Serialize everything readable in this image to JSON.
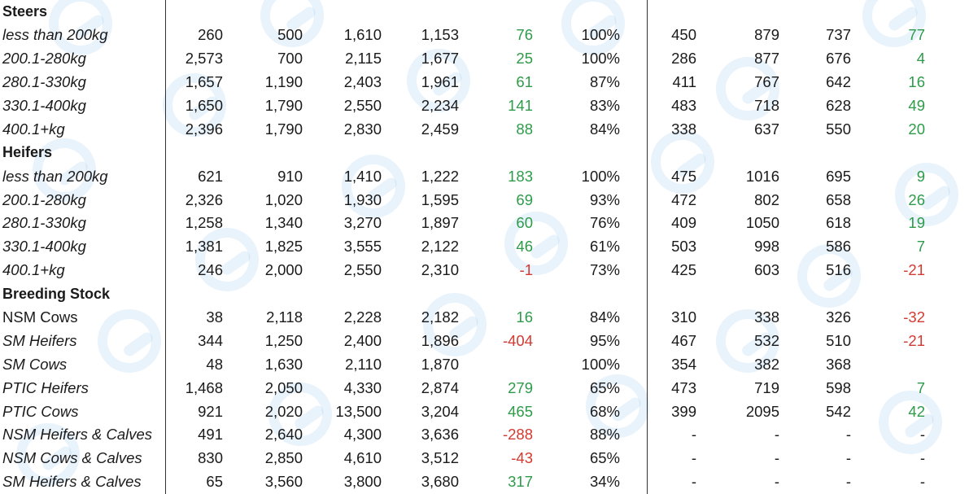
{
  "colors": {
    "positive": "#2e9b4a",
    "negative": "#d23a32",
    "watermark": "#78b4eb"
  },
  "sections": [
    {
      "title": "Steers",
      "rows": [
        {
          "label": "less than 200kg",
          "v": [
            "260",
            "500",
            "1,610",
            "1,153",
            "76",
            "100%",
            "450",
            "879",
            "737",
            "77"
          ]
        },
        {
          "label": "200.1-280kg",
          "v": [
            "2,573",
            "700",
            "2,115",
            "1,677",
            "25",
            "100%",
            "286",
            "877",
            "676",
            "4"
          ]
        },
        {
          "label": "280.1-330kg",
          "v": [
            "1,657",
            "1,190",
            "2,403",
            "1,961",
            "61",
            "87%",
            "411",
            "767",
            "642",
            "16"
          ]
        },
        {
          "label": "330.1-400kg",
          "v": [
            "1,650",
            "1,790",
            "2,550",
            "2,234",
            "141",
            "83%",
            "483",
            "718",
            "628",
            "49"
          ]
        },
        {
          "label": "400.1+kg",
          "v": [
            "2,396",
            "1,790",
            "2,830",
            "2,459",
            "88",
            "84%",
            "338",
            "637",
            "550",
            "20"
          ]
        }
      ]
    },
    {
      "title": "Heifers",
      "rows": [
        {
          "label": "less than 200kg",
          "v": [
            "621",
            "910",
            "1,410",
            "1,222",
            "183",
            "100%",
            "475",
            "1016",
            "695",
            "9"
          ]
        },
        {
          "label": "200.1-280kg",
          "v": [
            "2,326",
            "1,020",
            "1,930",
            "1,595",
            "69",
            "93%",
            "472",
            "802",
            "658",
            "26"
          ]
        },
        {
          "label": "280.1-330kg",
          "v": [
            "1,258",
            "1,340",
            "3,270",
            "1,897",
            "60",
            "76%",
            "409",
            "1050",
            "618",
            "19"
          ]
        },
        {
          "label": "330.1-400kg",
          "v": [
            "1,381",
            "1,825",
            "3,555",
            "2,122",
            "46",
            "61%",
            "503",
            "998",
            "586",
            "7"
          ]
        },
        {
          "label": "400.1+kg",
          "v": [
            "246",
            "2,000",
            "2,550",
            "2,310",
            "-1",
            "73%",
            "425",
            "603",
            "516",
            "-21"
          ]
        }
      ]
    },
    {
      "title": "Breeding Stock",
      "rows": [
        {
          "label": "NSM Cows",
          "v": [
            "38",
            "2,118",
            "2,228",
            "2,182",
            "16",
            "84%",
            "310",
            "338",
            "326",
            "-32"
          ]
        },
        {
          "label": "SM Heifers",
          "v": [
            "344",
            "1,250",
            "2,400",
            "1,896",
            "-404",
            "95%",
            "467",
            "532",
            "510",
            "-21"
          ]
        },
        {
          "label": "SM Cows",
          "v": [
            "48",
            "1,630",
            "2,110",
            "1,870",
            "",
            "100%",
            "354",
            "382",
            "368",
            ""
          ]
        },
        {
          "label": "PTIC Heifers",
          "v": [
            "1,468",
            "2,050",
            "4,330",
            "2,874",
            "279",
            "65%",
            "473",
            "719",
            "598",
            "7"
          ]
        },
        {
          "label": "PTIC Cows",
          "v": [
            "921",
            "2,020",
            "13,500",
            "3,204",
            "465",
            "68%",
            "399",
            "2095",
            "542",
            "42"
          ]
        },
        {
          "label": "NSM Heifers & Calves",
          "v": [
            "491",
            "2,640",
            "4,300",
            "3,636",
            "-288",
            "88%",
            "-",
            "-",
            "-",
            "-"
          ]
        },
        {
          "label": "NSM Cows & Calves",
          "v": [
            "830",
            "2,850",
            "4,610",
            "3,512",
            "-43",
            "65%",
            "-",
            "-",
            "-",
            "-"
          ]
        },
        {
          "label": "SM Heifers & Calves",
          "v": [
            "65",
            "3,560",
            "3,800",
            "3,680",
            "317",
            "34%",
            "-",
            "-",
            "-",
            "-"
          ]
        }
      ]
    }
  ]
}
